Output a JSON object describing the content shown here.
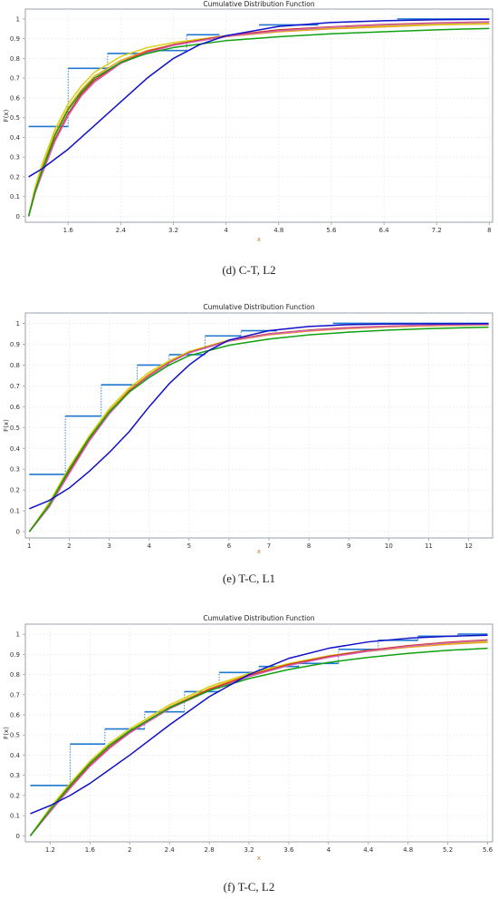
{
  "colors": {
    "empirical": "#1f77d0",
    "blue": "#1010c8",
    "green": "#11a011",
    "orange": "#e8a020",
    "yellow": "#d8d010",
    "red": "#d23020",
    "pink": "#d060b0",
    "frame": "#9aa0a8",
    "grid": "#e9ecef"
  },
  "chart_data": [
    {
      "id": "d",
      "type": "line",
      "title": "Cumulative Distribution Function",
      "xlabel": "x",
      "ylabel": "F(x)",
      "caption": "(d) C-T, L2",
      "xlim": [
        0.95,
        8.05
      ],
      "ylim": [
        -0.03,
        1.05
      ],
      "xticks": [
        "1.6",
        "2.4",
        "3.2",
        "4",
        "4.8",
        "5.6",
        "6.4",
        "7.2",
        "8"
      ],
      "yticks": [
        "0",
        "0.1",
        "0.2",
        "0.3",
        "0.4",
        "0.5",
        "0.6",
        "0.7",
        "0.8",
        "0.9",
        "1"
      ],
      "empirical_steps": [
        {
          "x0": 1.0,
          "x1": 1.6,
          "y": 0.455
        },
        {
          "x0": 1.6,
          "x1": 2.2,
          "y": 0.75
        },
        {
          "x0": 2.2,
          "x1": 2.8,
          "y": 0.825
        },
        {
          "x0": 2.8,
          "x1": 3.4,
          "y": 0.84
        },
        {
          "x0": 3.4,
          "x1": 3.9,
          "y": 0.92
        },
        {
          "x0": 4.5,
          "x1": 5.4,
          "y": 0.97
        },
        {
          "x0": 6.6,
          "x1": 8.0,
          "y": 1.0
        }
      ],
      "series": [
        {
          "color": "orange",
          "x": [
            1.0,
            1.1,
            1.2,
            1.4,
            1.6,
            1.8,
            2.0,
            2.4,
            2.8,
            3.2,
            4.0,
            4.8,
            5.6,
            6.4,
            7.2,
            8.0
          ],
          "y": [
            0.0,
            0.14,
            0.24,
            0.42,
            0.55,
            0.64,
            0.71,
            0.79,
            0.84,
            0.87,
            0.91,
            0.935,
            0.95,
            0.96,
            0.97,
            0.975
          ]
        },
        {
          "color": "yellow",
          "x": [
            1.0,
            1.1,
            1.2,
            1.4,
            1.6,
            1.8,
            2.0,
            2.4,
            2.8,
            3.2,
            4.0,
            4.8,
            5.6,
            6.4,
            7.2,
            8.0
          ],
          "y": [
            0.0,
            0.15,
            0.26,
            0.44,
            0.57,
            0.66,
            0.73,
            0.81,
            0.855,
            0.88,
            0.915,
            0.94,
            0.955,
            0.965,
            0.972,
            0.978
          ]
        },
        {
          "color": "red",
          "x": [
            1.0,
            1.1,
            1.2,
            1.4,
            1.6,
            1.8,
            2.0,
            2.4,
            2.8,
            3.2,
            4.0,
            4.8,
            5.6,
            6.4,
            7.2,
            8.0
          ],
          "y": [
            0.0,
            0.12,
            0.22,
            0.39,
            0.52,
            0.62,
            0.69,
            0.78,
            0.835,
            0.87,
            0.915,
            0.945,
            0.96,
            0.972,
            0.98,
            0.985
          ]
        },
        {
          "color": "pink",
          "x": [
            1.0,
            1.1,
            1.2,
            1.4,
            1.6,
            1.8,
            2.0,
            2.4,
            2.8,
            3.2,
            4.0,
            4.8,
            5.6,
            6.4,
            7.2,
            8.0
          ],
          "y": [
            0.0,
            0.12,
            0.21,
            0.38,
            0.51,
            0.61,
            0.68,
            0.775,
            0.83,
            0.866,
            0.912,
            0.94,
            0.958,
            0.97,
            0.978,
            0.984
          ]
        },
        {
          "color": "green",
          "x": [
            1.0,
            1.1,
            1.2,
            1.4,
            1.6,
            1.8,
            2.0,
            2.4,
            2.8,
            3.2,
            4.0,
            4.8,
            5.6,
            6.4,
            7.2,
            8.0
          ],
          "y": [
            0.0,
            0.13,
            0.23,
            0.41,
            0.54,
            0.63,
            0.7,
            0.78,
            0.825,
            0.855,
            0.89,
            0.91,
            0.925,
            0.935,
            0.945,
            0.952
          ]
        },
        {
          "color": "blue",
          "x": [
            1.0,
            1.2,
            1.4,
            1.6,
            1.8,
            2.0,
            2.4,
            2.8,
            3.2,
            3.6,
            4.0,
            4.8,
            5.6,
            6.4,
            7.2,
            8.0
          ],
          "y": [
            0.2,
            0.24,
            0.29,
            0.34,
            0.4,
            0.46,
            0.58,
            0.7,
            0.8,
            0.87,
            0.915,
            0.962,
            0.982,
            0.991,
            0.996,
            0.998
          ]
        }
      ]
    },
    {
      "id": "e",
      "type": "line",
      "title": "Cumulative Distribution Function",
      "xlabel": "x",
      "ylabel": "F(x)",
      "caption": "(e) T-C, L1",
      "xlim": [
        0.9,
        12.6
      ],
      "ylim": [
        -0.03,
        1.05
      ],
      "xticks": [
        "1",
        "2",
        "3",
        "4",
        "5",
        "6",
        "7",
        "8",
        "9",
        "10",
        "11",
        "12"
      ],
      "yticks": [
        "0",
        "0.1",
        "0.2",
        "0.3",
        "0.4",
        "0.5",
        "0.6",
        "0.7",
        "0.8",
        "0.9",
        "1"
      ],
      "empirical_steps": [
        {
          "x0": 1.0,
          "x1": 1.9,
          "y": 0.275
        },
        {
          "x0": 1.9,
          "x1": 2.8,
          "y": 0.555
        },
        {
          "x0": 2.8,
          "x1": 3.7,
          "y": 0.705
        },
        {
          "x0": 3.7,
          "x1": 4.5,
          "y": 0.8
        },
        {
          "x0": 4.5,
          "x1": 5.4,
          "y": 0.85
        },
        {
          "x0": 5.4,
          "x1": 6.3,
          "y": 0.94
        },
        {
          "x0": 6.3,
          "x1": 7.2,
          "y": 0.965
        },
        {
          "x0": 8.6,
          "x1": 12.5,
          "y": 1.0
        }
      ],
      "series": [
        {
          "color": "orange",
          "x": [
            1.0,
            1.5,
            2.0,
            2.5,
            3.0,
            3.5,
            4.0,
            4.5,
            5.0,
            6.0,
            7.0,
            8.0,
            9.0,
            10.0,
            11.0,
            12.5
          ],
          "y": [
            0.0,
            0.13,
            0.3,
            0.45,
            0.58,
            0.68,
            0.755,
            0.815,
            0.86,
            0.915,
            0.945,
            0.963,
            0.975,
            0.983,
            0.988,
            0.993
          ]
        },
        {
          "color": "yellow",
          "x": [
            1.0,
            1.5,
            2.0,
            2.5,
            3.0,
            3.5,
            4.0,
            4.5,
            5.0,
            6.0,
            7.0,
            8.0,
            9.0,
            10.0,
            11.0,
            12.5
          ],
          "y": [
            0.0,
            0.14,
            0.31,
            0.46,
            0.59,
            0.69,
            0.765,
            0.82,
            0.865,
            0.92,
            0.95,
            0.967,
            0.978,
            0.985,
            0.99,
            0.995
          ]
        },
        {
          "color": "red",
          "x": [
            1.0,
            1.5,
            2.0,
            2.5,
            3.0,
            3.5,
            4.0,
            4.5,
            5.0,
            6.0,
            7.0,
            8.0,
            9.0,
            10.0,
            11.0,
            12.5
          ],
          "y": [
            0.0,
            0.12,
            0.29,
            0.44,
            0.57,
            0.675,
            0.75,
            0.812,
            0.86,
            0.918,
            0.95,
            0.968,
            0.98,
            0.987,
            0.992,
            0.996
          ]
        },
        {
          "color": "pink",
          "x": [
            1.0,
            1.5,
            2.0,
            2.5,
            3.0,
            3.5,
            4.0,
            4.5,
            5.0,
            6.0,
            7.0,
            8.0,
            9.0,
            10.0,
            11.0,
            12.5
          ],
          "y": [
            0.0,
            0.12,
            0.28,
            0.435,
            0.565,
            0.67,
            0.748,
            0.81,
            0.858,
            0.916,
            0.948,
            0.966,
            0.978,
            0.986,
            0.991,
            0.995
          ]
        },
        {
          "color": "green",
          "x": [
            1.0,
            1.5,
            2.0,
            2.5,
            3.0,
            3.5,
            4.0,
            4.5,
            5.0,
            6.0,
            7.0,
            8.0,
            9.0,
            10.0,
            11.0,
            12.5
          ],
          "y": [
            0.0,
            0.13,
            0.3,
            0.45,
            0.575,
            0.67,
            0.74,
            0.8,
            0.845,
            0.895,
            0.925,
            0.945,
            0.958,
            0.968,
            0.975,
            0.982
          ]
        },
        {
          "color": "blue",
          "x": [
            1.0,
            1.5,
            2.0,
            2.5,
            3.0,
            3.5,
            4.0,
            4.5,
            5.0,
            5.5,
            6.0,
            7.0,
            8.0,
            9.0,
            10.0,
            12.5
          ],
          "y": [
            0.11,
            0.15,
            0.21,
            0.29,
            0.38,
            0.48,
            0.6,
            0.71,
            0.8,
            0.87,
            0.92,
            0.965,
            0.985,
            0.994,
            0.997,
            0.999
          ]
        }
      ]
    },
    {
      "id": "f",
      "type": "line",
      "title": "Cumulative Distribution Function",
      "xlabel": "x",
      "ylabel": "F(x)",
      "caption": "(f) T-C, L2",
      "xlim": [
        0.95,
        5.65
      ],
      "ylim": [
        -0.03,
        1.05
      ],
      "xticks": [
        "1.2",
        "1.6",
        "2",
        "2.4",
        "2.8",
        "3.2",
        "3.6",
        "4",
        "4.4",
        "4.8",
        "5.2",
        "5.6"
      ],
      "yticks": [
        "0",
        "0.1",
        "0.2",
        "0.3",
        "0.4",
        "0.5",
        "0.6",
        "0.7",
        "0.8",
        "0.9",
        "1"
      ],
      "empirical_steps": [
        {
          "x0": 1.0,
          "x1": 1.4,
          "y": 0.25
        },
        {
          "x0": 1.4,
          "x1": 1.75,
          "y": 0.455
        },
        {
          "x0": 1.75,
          "x1": 2.15,
          "y": 0.53
        },
        {
          "x0": 2.15,
          "x1": 2.55,
          "y": 0.615
        },
        {
          "x0": 2.55,
          "x1": 2.9,
          "y": 0.715
        },
        {
          "x0": 2.9,
          "x1": 3.3,
          "y": 0.81
        },
        {
          "x0": 3.3,
          "x1": 3.7,
          "y": 0.84
        },
        {
          "x0": 3.7,
          "x1": 4.1,
          "y": 0.855
        },
        {
          "x0": 4.1,
          "x1": 4.5,
          "y": 0.925
        },
        {
          "x0": 4.5,
          "x1": 4.9,
          "y": 0.97
        },
        {
          "x0": 4.9,
          "x1": 5.3,
          "y": 0.99
        },
        {
          "x0": 5.3,
          "x1": 5.6,
          "y": 1.0
        }
      ],
      "series": [
        {
          "color": "orange",
          "x": [
            1.0,
            1.2,
            1.4,
            1.6,
            1.8,
            2.0,
            2.4,
            2.8,
            3.2,
            3.6,
            4.0,
            4.4,
            4.8,
            5.2,
            5.6
          ],
          "y": [
            0.0,
            0.13,
            0.25,
            0.36,
            0.45,
            0.52,
            0.64,
            0.73,
            0.8,
            0.85,
            0.89,
            0.915,
            0.935,
            0.95,
            0.96
          ]
        },
        {
          "color": "yellow",
          "x": [
            1.0,
            1.2,
            1.4,
            1.6,
            1.8,
            2.0,
            2.4,
            2.8,
            3.2,
            3.6,
            4.0,
            4.4,
            4.8,
            5.2,
            5.6
          ],
          "y": [
            0.0,
            0.14,
            0.26,
            0.37,
            0.46,
            0.53,
            0.65,
            0.74,
            0.805,
            0.855,
            0.893,
            0.92,
            0.94,
            0.955,
            0.965
          ]
        },
        {
          "color": "red",
          "x": [
            1.0,
            1.2,
            1.4,
            1.6,
            1.8,
            2.0,
            2.4,
            2.8,
            3.2,
            3.6,
            4.0,
            4.4,
            4.8,
            5.2,
            5.6
          ],
          "y": [
            0.0,
            0.12,
            0.24,
            0.35,
            0.44,
            0.515,
            0.635,
            0.725,
            0.795,
            0.85,
            0.89,
            0.92,
            0.943,
            0.96,
            0.972
          ]
        },
        {
          "color": "pink",
          "x": [
            1.0,
            1.2,
            1.4,
            1.6,
            1.8,
            2.0,
            2.4,
            2.8,
            3.2,
            3.6,
            4.0,
            4.4,
            4.8,
            5.2,
            5.6
          ],
          "y": [
            0.0,
            0.12,
            0.235,
            0.345,
            0.435,
            0.51,
            0.63,
            0.72,
            0.79,
            0.845,
            0.885,
            0.916,
            0.94,
            0.957,
            0.97
          ]
        },
        {
          "color": "green",
          "x": [
            1.0,
            1.2,
            1.4,
            1.6,
            1.8,
            2.0,
            2.4,
            2.8,
            3.2,
            3.6,
            4.0,
            4.4,
            4.8,
            5.2,
            5.6
          ],
          "y": [
            0.0,
            0.13,
            0.25,
            0.36,
            0.45,
            0.52,
            0.635,
            0.72,
            0.78,
            0.825,
            0.86,
            0.885,
            0.905,
            0.92,
            0.93
          ]
        },
        {
          "color": "blue",
          "x": [
            1.0,
            1.2,
            1.4,
            1.6,
            1.8,
            2.0,
            2.4,
            2.8,
            3.2,
            3.6,
            4.0,
            4.4,
            4.8,
            5.2,
            5.6
          ],
          "y": [
            0.11,
            0.15,
            0.2,
            0.26,
            0.33,
            0.4,
            0.55,
            0.69,
            0.8,
            0.88,
            0.93,
            0.962,
            0.98,
            0.99,
            0.995
          ]
        }
      ]
    }
  ]
}
